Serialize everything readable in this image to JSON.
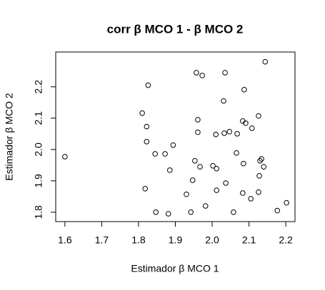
{
  "chart_data": {
    "type": "scatter",
    "title": "corr β MCO 1 - β MCO 2",
    "x_label": "Estimador β MCO 1",
    "y_label": "Estimador β MCO 2",
    "color": "#000000",
    "xlim": [
      1.575,
      2.225
    ],
    "ylim": [
      1.77,
      2.311
    ],
    "xticks": [
      1.6,
      1.7,
      1.8,
      1.9,
      {
        "value": 2,
        "label": "2.0"
      },
      2.1,
      2.2
    ],
    "yticks": [
      1.8,
      1.9,
      {
        "value": 2,
        "label": "2.0"
      },
      2.1,
      2.2
    ],
    "x": [
      1.6,
      1.81,
      1.826,
      1.822,
      1.822,
      1.818,
      1.847,
      1.845,
      1.872,
      1.894,
      1.885,
      1.881,
      1.93,
      1.942,
      1.947,
      1.957,
      1.973,
      1.961,
      1.961,
      1.953,
      1.967,
      1.982,
      2.002,
      2.012,
      2.01,
      2.012,
      2.031,
      2.035,
      2.033,
      2.047,
      2.037,
      2.068,
      2.066,
      2.058,
      2.087,
      2.083,
      2.091,
      2.085,
      2.083,
      2.108,
      2.105,
      2.126,
      2.13,
      2.134,
      2.128,
      2.126,
      2.14,
      2.144,
      2.177,
      2.202
    ],
    "y": [
      1.977,
      2.116,
      2.205,
      2.073,
      2.025,
      1.875,
      1.8,
      1.986,
      1.986,
      2.014,
      1.934,
      1.795,
      1.857,
      1.8,
      1.902,
      2.245,
      2.236,
      2.095,
      2.055,
      1.964,
      1.945,
      1.82,
      1.948,
      1.939,
      2.048,
      1.87,
      2.155,
      2.245,
      2.052,
      2.057,
      1.893,
      2.05,
      1.989,
      1.8,
      2.191,
      2.091,
      2.084,
      1.955,
      1.861,
      2.068,
      1.843,
      2.107,
      1.964,
      1.97,
      1.916,
      1.864,
      1.945,
      2.28,
      1.805,
      1.83
    ]
  }
}
